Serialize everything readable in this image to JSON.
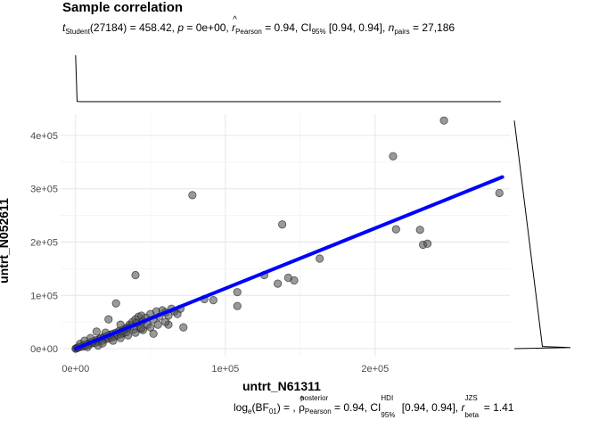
{
  "title": "Sample correlation",
  "subtitle": {
    "t_label": "t",
    "t_sub": "Student",
    "t_df": "(27184) = 458.42, ",
    "p_label": "p",
    "p_value": " = 0e+00, ",
    "r_label": "r",
    "r_sub": "Pearson",
    "r_value": " = 0.94, CI",
    "ci_sub": "95%",
    "ci_value": " [0.94, 0.94], ",
    "n_label": "n",
    "n_sub": "pairs",
    "n_value": " = 27,186"
  },
  "caption": {
    "bf_label": "log",
    "bf_sub": "e",
    "bf_value": "(BF",
    "bf_sub2": "01",
    "bf_rest": ") = , ",
    "rho_over": "posterior",
    "rho_label": "ρ",
    "rho_sub": "Pearson",
    "rho_value": " = 0.94, CI",
    "ci_over": "HDI",
    "ci_sub": "95%",
    "ci_value": " [0.94, 0.94], ",
    "r_label": "r",
    "r_over": "JZS",
    "r_sub": "beta",
    "r_value": " = 1.41"
  },
  "chart_data": {
    "type": "scatter",
    "xlabel": "untrt_N61311",
    "ylabel": "untrt_N052611",
    "xlim": [
      -10000,
      290000
    ],
    "ylim": [
      -15000,
      440000
    ],
    "x_ticks": [
      0,
      100000,
      200000
    ],
    "x_tick_labels": [
      "0e+00",
      "1e+05",
      "2e+05"
    ],
    "y_ticks": [
      0,
      100000,
      200000,
      300000,
      400000
    ],
    "y_tick_labels": [
      "0e+00",
      "1e+05",
      "2e+05",
      "3e+05",
      "4e+05"
    ],
    "grid": true,
    "point_color": "#555555",
    "fit_color": "#0000ff",
    "fit_line": {
      "x": [
        0,
        285000
      ],
      "y": [
        0,
        322000
      ]
    },
    "points": [
      [
        0,
        0
      ],
      [
        500,
        800
      ],
      [
        1200,
        1500
      ],
      [
        2000,
        2500
      ],
      [
        3000,
        3500
      ],
      [
        4000,
        5000
      ],
      [
        5000,
        4000
      ],
      [
        6000,
        7000
      ],
      [
        7000,
        6000
      ],
      [
        8000,
        9000
      ],
      [
        9000,
        8000
      ],
      [
        10000,
        12000
      ],
      [
        11000,
        10000
      ],
      [
        12000,
        14000
      ],
      [
        13000,
        11000
      ],
      [
        14000,
        16000
      ],
      [
        15000,
        13000
      ],
      [
        16000,
        18000
      ],
      [
        17000,
        20000
      ],
      [
        18000,
        15000
      ],
      [
        19000,
        22000
      ],
      [
        20000,
        18000
      ],
      [
        21000,
        24000
      ],
      [
        22000,
        19000
      ],
      [
        23000,
        26000
      ],
      [
        24000,
        21000
      ],
      [
        25000,
        28000
      ],
      [
        26000,
        23000
      ],
      [
        27000,
        30000
      ],
      [
        28000,
        25000
      ],
      [
        29000,
        33000
      ],
      [
        30000,
        27000
      ],
      [
        31000,
        35000
      ],
      [
        32000,
        29000
      ],
      [
        33000,
        38000
      ],
      [
        34000,
        31000
      ],
      [
        35000,
        40000
      ],
      [
        36000,
        45000
      ],
      [
        37000,
        42000
      ],
      [
        38000,
        50000
      ],
      [
        39000,
        36000
      ],
      [
        40000,
        55000
      ],
      [
        41000,
        48000
      ],
      [
        42000,
        60000
      ],
      [
        43000,
        38000
      ],
      [
        44000,
        62000
      ],
      [
        45000,
        52000
      ],
      [
        47000,
        58000
      ],
      [
        48000,
        45000
      ],
      [
        50000,
        65000
      ],
      [
        52000,
        55000
      ],
      [
        54000,
        70000
      ],
      [
        56000,
        60000
      ],
      [
        58000,
        72000
      ],
      [
        60000,
        68000
      ],
      [
        62000,
        62000
      ],
      [
        64000,
        75000
      ],
      [
        66000,
        70000
      ],
      [
        68000,
        65000
      ],
      [
        70000,
        75000
      ],
      [
        14000,
        32000
      ],
      [
        22000,
        55000
      ],
      [
        27000,
        85000
      ],
      [
        40000,
        138000
      ],
      [
        52000,
        28000
      ],
      [
        62000,
        45000
      ],
      [
        72000,
        40000
      ],
      [
        86000,
        93000
      ],
      [
        92000,
        91000
      ],
      [
        108000,
        106000
      ],
      [
        108000,
        80000
      ],
      [
        78000,
        288000
      ],
      [
        126000,
        138000
      ],
      [
        135000,
        122000
      ],
      [
        138000,
        233000
      ],
      [
        142000,
        133000
      ],
      [
        146000,
        128000
      ],
      [
        163000,
        169000
      ],
      [
        212000,
        361000
      ],
      [
        214000,
        224000
      ],
      [
        230000,
        223000
      ],
      [
        232000,
        195000
      ],
      [
        235000,
        197000
      ],
      [
        246000,
        428000
      ],
      [
        283000,
        292000
      ],
      [
        8000,
        3000
      ],
      [
        3000,
        9000
      ],
      [
        15000,
        6000
      ],
      [
        6000,
        15000
      ],
      [
        18000,
        10000
      ],
      [
        25000,
        15000
      ],
      [
        30000,
        20000
      ],
      [
        35000,
        25000
      ],
      [
        40000,
        30000
      ],
      [
        45000,
        35000
      ],
      [
        50000,
        40000
      ],
      [
        55000,
        45000
      ],
      [
        60000,
        50000
      ],
      [
        10000,
        20000
      ],
      [
        20000,
        30000
      ],
      [
        30000,
        45000
      ],
      [
        44000,
        38000
      ]
    ],
    "x_marginal": [
      [
        0,
        85
      ],
      [
        1000,
        0.5
      ],
      [
        3000,
        0
      ],
      [
        284000,
        0
      ]
    ],
    "y_marginal": [
      [
        0,
        0
      ],
      [
        2000,
        0.6
      ],
      [
        4000,
        0.3
      ],
      [
        428000,
        0
      ]
    ]
  }
}
